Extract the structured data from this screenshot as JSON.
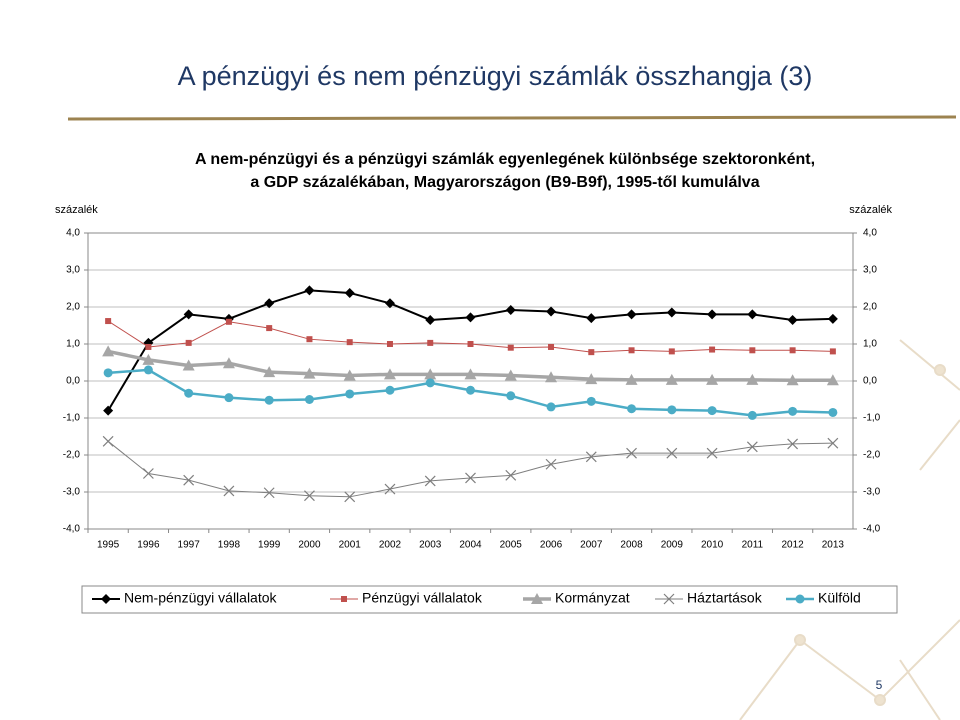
{
  "slide": {
    "title": "A pénzügyi és nem pénzügyi számlák összhangja (3)",
    "page_number": "5"
  },
  "chart_data": {
    "type": "line",
    "title": [
      "A nem-pénzügyi és a pénzügyi számlák egyenlegének különbsége szektoronként,",
      "a  GDP százalékában, Magyarországon (B9-B9f), 1995-től kumulálva"
    ],
    "y_label": "százalék",
    "y2_label": "százalék",
    "categories": [
      "1995",
      "1996",
      "1997",
      "1998",
      "1999",
      "2000",
      "2001",
      "2002",
      "2003",
      "2004",
      "2005",
      "2006",
      "2007",
      "2008",
      "2009",
      "2010",
      "2011",
      "2012",
      "2013"
    ],
    "ylim": [
      -4,
      4
    ],
    "yticks": [
      {
        "value": 4,
        "label": "4,0"
      },
      {
        "value": 3,
        "label": "3,0"
      },
      {
        "value": 2,
        "label": "2,0"
      },
      {
        "value": 1,
        "label": "1,0"
      },
      {
        "value": 0,
        "label": "0,0"
      },
      {
        "value": -1,
        "label": "-1,0"
      },
      {
        "value": -2,
        "label": "-2,0"
      },
      {
        "value": -3,
        "label": "-3,0"
      },
      {
        "value": -4,
        "label": "-4,0"
      }
    ],
    "y2lim": [
      -4,
      4
    ],
    "y2ticks": [
      {
        "value": 4,
        "label": "4,0"
      },
      {
        "value": 3,
        "label": "3,0"
      },
      {
        "value": 2,
        "label": "2,0"
      },
      {
        "value": 1,
        "label": "1,0"
      },
      {
        "value": 0,
        "label": "0,0"
      },
      {
        "value": -1,
        "label": "-1,0"
      },
      {
        "value": -2,
        "label": "-2,0"
      },
      {
        "value": -3,
        "label": "-3,0"
      },
      {
        "value": -4,
        "label": "-4,0"
      }
    ],
    "grid": true,
    "legend": "bottom",
    "series": [
      {
        "name": "Nem-pénzügyi vállalatok",
        "color": "#000000",
        "marker": "diamond",
        "values": [
          -0.8,
          1.03,
          1.8,
          1.68,
          2.1,
          2.45,
          2.38,
          2.1,
          1.65,
          1.72,
          1.92,
          1.88,
          1.7,
          1.8,
          1.85,
          1.8,
          1.8,
          1.65,
          1.68
        ]
      },
      {
        "name": "Pénzügyi vállalatok",
        "color": "#c0504d",
        "marker": "square",
        "values": [
          1.62,
          0.92,
          1.03,
          1.6,
          1.43,
          1.13,
          1.05,
          1.0,
          1.03,
          1.0,
          0.9,
          0.92,
          0.78,
          0.83,
          0.8,
          0.85,
          0.83,
          0.83,
          0.8
        ]
      },
      {
        "name": "Kormányzat",
        "color": "#a6a6a6",
        "marker": "triangle",
        "values": [
          0.8,
          0.57,
          0.42,
          0.48,
          0.24,
          0.2,
          0.15,
          0.18,
          0.18,
          0.18,
          0.15,
          0.1,
          0.05,
          0.03,
          0.03,
          0.03,
          0.03,
          0.02,
          0.02
        ]
      },
      {
        "name": "Háztartások",
        "color": "#7f7f7f",
        "marker": "x",
        "values": [
          -1.63,
          -2.5,
          -2.68,
          -2.97,
          -3.02,
          -3.1,
          -3.13,
          -2.92,
          -2.7,
          -2.62,
          -2.55,
          -2.25,
          -2.05,
          -1.95,
          -1.95,
          -1.95,
          -1.78,
          -1.7,
          -1.68
        ]
      },
      {
        "name": "Külföld",
        "color": "#4bacc6",
        "marker": "circle",
        "values": [
          0.22,
          0.3,
          -0.33,
          -0.45,
          -0.52,
          -0.5,
          -0.35,
          -0.25,
          -0.05,
          -0.25,
          -0.4,
          -0.7,
          -0.55,
          -0.75,
          -0.78,
          -0.8,
          -0.93,
          -0.82,
          -0.85
        ]
      }
    ]
  }
}
